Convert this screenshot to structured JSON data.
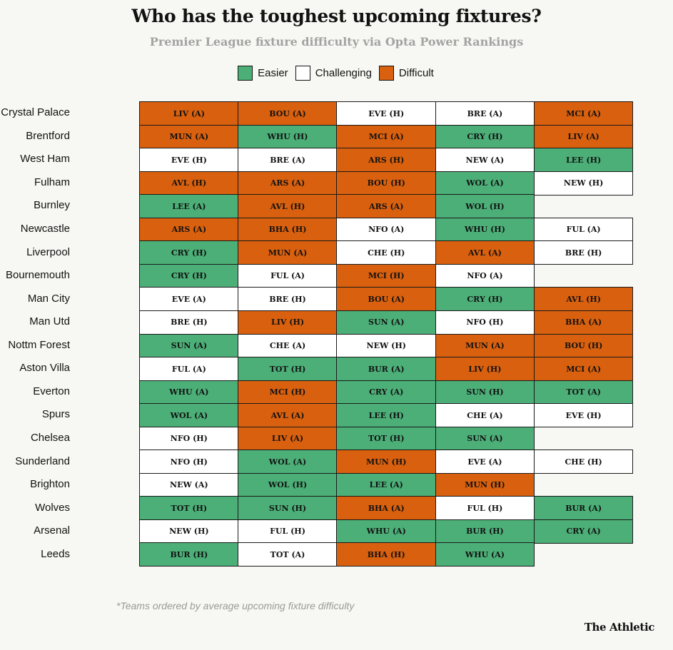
{
  "title": "Who has the toughest upcoming fixtures?",
  "subtitle": "Premier League fixture difficulty via Opta Power Rankings",
  "footnote": "*Teams ordered by average upcoming fixture difficulty",
  "brand": "The Athletic",
  "colors": {
    "easier": "#4caf78",
    "challenging": "#ffffff",
    "difficult": "#d9600e"
  },
  "chart_data": {
    "type": "table",
    "legend": [
      {
        "key": "easier",
        "label": "Easier"
      },
      {
        "key": "challenging",
        "label": "Challenging"
      },
      {
        "key": "difficult",
        "label": "Difficult"
      }
    ],
    "rows": [
      {
        "team": "Crystal Palace",
        "fixtures": [
          [
            "LIV (A)",
            "difficult"
          ],
          [
            "BOU (A)",
            "difficult"
          ],
          [
            "EVE (H)",
            "challenging"
          ],
          [
            "BRE (A)",
            "challenging"
          ],
          [
            "MCI (A)",
            "difficult"
          ]
        ]
      },
      {
        "team": "Brentford",
        "fixtures": [
          [
            "MUN (A)",
            "difficult"
          ],
          [
            "WHU (H)",
            "easier"
          ],
          [
            "MCI (A)",
            "difficult"
          ],
          [
            "CRY (H)",
            "easier"
          ],
          [
            "LIV (A)",
            "difficult"
          ]
        ]
      },
      {
        "team": "West Ham",
        "fixtures": [
          [
            "EVE (H)",
            "challenging"
          ],
          [
            "BRE (A)",
            "challenging"
          ],
          [
            "ARS (H)",
            "difficult"
          ],
          [
            "NEW (A)",
            "challenging"
          ],
          [
            "LEE (H)",
            "easier"
          ]
        ]
      },
      {
        "team": "Fulham",
        "fixtures": [
          [
            "AVL (H)",
            "difficult"
          ],
          [
            "ARS (A)",
            "difficult"
          ],
          [
            "BOU (H)",
            "difficult"
          ],
          [
            "WOL (A)",
            "easier"
          ],
          [
            "NEW (H)",
            "challenging"
          ]
        ]
      },
      {
        "team": "Burnley",
        "fixtures": [
          [
            "LEE (A)",
            "easier"
          ],
          [
            "AVL (H)",
            "difficult"
          ],
          [
            "ARS (A)",
            "difficult"
          ],
          [
            "WOL (H)",
            "easier"
          ]
        ]
      },
      {
        "team": "Newcastle",
        "fixtures": [
          [
            "ARS (A)",
            "difficult"
          ],
          [
            "BHA (H)",
            "difficult"
          ],
          [
            "NFO (A)",
            "challenging"
          ],
          [
            "WHU (H)",
            "easier"
          ],
          [
            "FUL (A)",
            "challenging"
          ]
        ]
      },
      {
        "team": "Liverpool",
        "fixtures": [
          [
            "CRY (H)",
            "easier"
          ],
          [
            "MUN (A)",
            "difficult"
          ],
          [
            "CHE (H)",
            "challenging"
          ],
          [
            "AVL (A)",
            "difficult"
          ],
          [
            "BRE (H)",
            "challenging"
          ]
        ]
      },
      {
        "team": "Bournemouth",
        "fixtures": [
          [
            "CRY (H)",
            "easier"
          ],
          [
            "FUL (A)",
            "challenging"
          ],
          [
            "MCI (H)",
            "difficult"
          ],
          [
            "NFO (A)",
            "challenging"
          ]
        ]
      },
      {
        "team": "Man City",
        "fixtures": [
          [
            "EVE (A)",
            "challenging"
          ],
          [
            "BRE (H)",
            "challenging"
          ],
          [
            "BOU (A)",
            "difficult"
          ],
          [
            "CRY (H)",
            "easier"
          ],
          [
            "AVL (H)",
            "difficult"
          ]
        ]
      },
      {
        "team": "Man Utd",
        "fixtures": [
          [
            "BRE (H)",
            "challenging"
          ],
          [
            "LIV (H)",
            "difficult"
          ],
          [
            "SUN (A)",
            "easier"
          ],
          [
            "NFO (H)",
            "challenging"
          ],
          [
            "BHA (A)",
            "difficult"
          ]
        ]
      },
      {
        "team": "Nottm Forest",
        "fixtures": [
          [
            "SUN (A)",
            "easier"
          ],
          [
            "CHE (A)",
            "challenging"
          ],
          [
            "NEW (H)",
            "challenging"
          ],
          [
            "MUN (A)",
            "difficult"
          ],
          [
            "BOU (H)",
            "difficult"
          ]
        ]
      },
      {
        "team": "Aston Villa",
        "fixtures": [
          [
            "FUL (A)",
            "challenging"
          ],
          [
            "TOT (H)",
            "easier"
          ],
          [
            "BUR (A)",
            "easier"
          ],
          [
            "LIV (H)",
            "difficult"
          ],
          [
            "MCI (A)",
            "difficult"
          ]
        ]
      },
      {
        "team": "Everton",
        "fixtures": [
          [
            "WHU (A)",
            "easier"
          ],
          [
            "MCI (H)",
            "difficult"
          ],
          [
            "CRY (A)",
            "easier"
          ],
          [
            "SUN (H)",
            "easier"
          ],
          [
            "TOT (A)",
            "easier"
          ]
        ]
      },
      {
        "team": "Spurs",
        "fixtures": [
          [
            "WOL (A)",
            "easier"
          ],
          [
            "AVL (A)",
            "difficult"
          ],
          [
            "LEE (H)",
            "easier"
          ],
          [
            "CHE (A)",
            "challenging"
          ],
          [
            "EVE (H)",
            "challenging"
          ]
        ]
      },
      {
        "team": "Chelsea",
        "fixtures": [
          [
            "NFO (H)",
            "challenging"
          ],
          [
            "LIV (A)",
            "difficult"
          ],
          [
            "TOT (H)",
            "easier"
          ],
          [
            "SUN (A)",
            "easier"
          ]
        ]
      },
      {
        "team": "Sunderland",
        "fixtures": [
          [
            "NFO (H)",
            "challenging"
          ],
          [
            "WOL (A)",
            "easier"
          ],
          [
            "MUN (H)",
            "difficult"
          ],
          [
            "EVE (A)",
            "challenging"
          ],
          [
            "CHE (H)",
            "challenging"
          ]
        ]
      },
      {
        "team": "Brighton",
        "fixtures": [
          [
            "NEW (A)",
            "challenging"
          ],
          [
            "WOL (H)",
            "easier"
          ],
          [
            "LEE (A)",
            "easier"
          ],
          [
            "MUN (H)",
            "difficult"
          ]
        ]
      },
      {
        "team": "Wolves",
        "fixtures": [
          [
            "TOT (H)",
            "easier"
          ],
          [
            "SUN (H)",
            "easier"
          ],
          [
            "BHA (A)",
            "difficult"
          ],
          [
            "FUL (H)",
            "challenging"
          ],
          [
            "BUR (A)",
            "easier"
          ]
        ]
      },
      {
        "team": "Arsenal",
        "fixtures": [
          [
            "NEW (H)",
            "challenging"
          ],
          [
            "FUL (H)",
            "challenging"
          ],
          [
            "WHU (A)",
            "easier"
          ],
          [
            "BUR (H)",
            "easier"
          ],
          [
            "CRY (A)",
            "easier"
          ]
        ]
      },
      {
        "team": "Leeds",
        "fixtures": [
          [
            "BUR (H)",
            "easier"
          ],
          [
            "TOT (A)",
            "challenging"
          ],
          [
            "BHA (H)",
            "difficult"
          ],
          [
            "WHU (A)",
            "easier"
          ]
        ]
      }
    ]
  }
}
